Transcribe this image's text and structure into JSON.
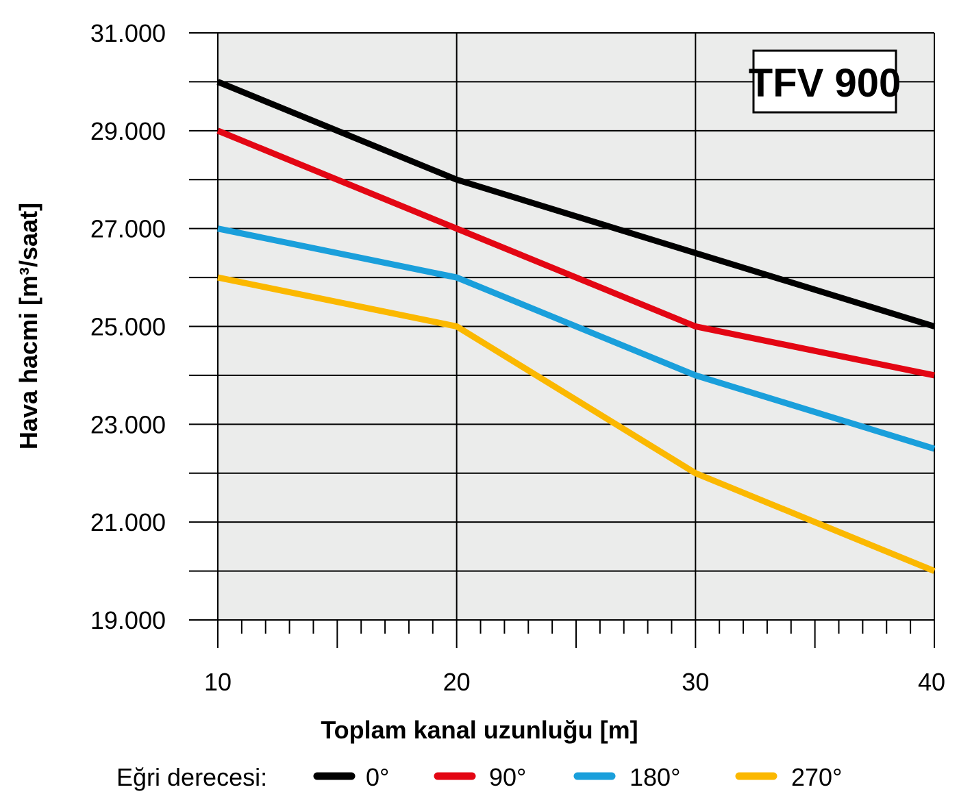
{
  "chart_data": {
    "type": "line",
    "badge": "TFV 900",
    "xlabel": "Toplam kanal uzunluğu [m]",
    "ylabel": "Hava hacmi [m³/saat]",
    "xlim": [
      10,
      40
    ],
    "ylim": [
      19000,
      31000
    ],
    "x_ticks": [
      10,
      20,
      30,
      40
    ],
    "x_tick_labels": [
      "10",
      "20",
      "30",
      "40"
    ],
    "y_ticks": [
      19000,
      21000,
      23000,
      25000,
      27000,
      29000,
      31000
    ],
    "y_tick_labels": [
      "19.000",
      "21.000",
      "23.000",
      "25.000",
      "27.000",
      "29.000",
      "31.000"
    ],
    "grid": true,
    "background": "#ebeceb",
    "legend": {
      "title": "Eğri derecesi:",
      "placement": "bottom"
    },
    "series": [
      {
        "name": "0°",
        "color": "#000000",
        "x": [
          10,
          20,
          30,
          40
        ],
        "values": [
          30000,
          28000,
          26500,
          25000
        ]
      },
      {
        "name": "90°",
        "color": "#e30613",
        "x": [
          10,
          20,
          30,
          40
        ],
        "values": [
          29000,
          27000,
          25000,
          24000
        ]
      },
      {
        "name": "180°",
        "color": "#1a9fdb",
        "x": [
          10,
          20,
          30,
          40
        ],
        "values": [
          27000,
          26000,
          24000,
          22500
        ]
      },
      {
        "name": "270°",
        "color": "#fbb800",
        "x": [
          10,
          20,
          30,
          40
        ],
        "values": [
          26000,
          25000,
          22000,
          20000
        ]
      }
    ]
  }
}
